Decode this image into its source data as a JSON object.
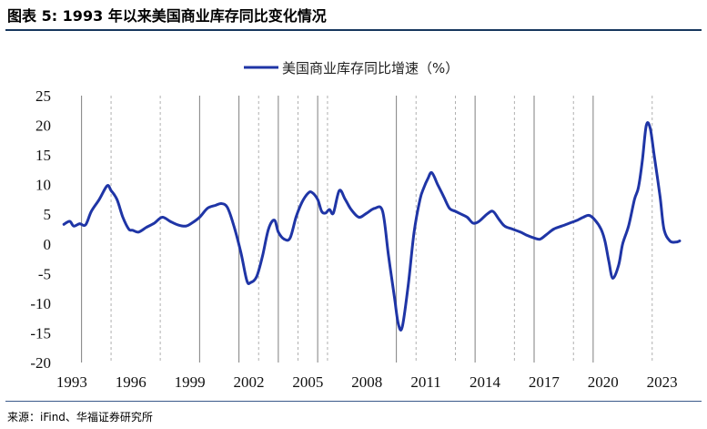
{
  "figure": {
    "title": "图表 5:  1993 年以来美国商业库存同比变化情况",
    "source": "来源：iFind、华福证券研究所"
  },
  "colors": {
    "series": "#1f35a6",
    "solid_grid": "#7f7f7f",
    "dashed_grid": "#b0b0b0"
  },
  "chart_data": {
    "type": "line",
    "title": "",
    "xlabel": "",
    "ylabel": "",
    "xlim": [
      1992.5,
      2024.5
    ],
    "ylim": [
      -20,
      25
    ],
    "y_ticks": [
      25,
      20,
      15,
      10,
      5,
      0,
      -5,
      -10,
      -15,
      -20
    ],
    "x_ticks": [
      "1993",
      "1996",
      "1999",
      "2002",
      "2005",
      "2008",
      "2011",
      "2014",
      "2017",
      "2020",
      "2023"
    ],
    "x_tick_values": [
      1993,
      1996,
      1999,
      2002,
      2005,
      2008,
      2011,
      2014,
      2017,
      2020,
      2023
    ],
    "grid": "vertical lines only",
    "vertical_solid_lines": [
      1993.5,
      1999.5,
      2001.5,
      2003.5,
      2005.5,
      2009.5,
      2013.5,
      2016.5,
      2019.5
    ],
    "vertical_dashed_lines": [
      1995.0,
      1997.5,
      2002.5,
      2004.5,
      2006.0,
      2010.5,
      2012.5,
      2015.5,
      2018.5,
      2022.5
    ],
    "legend_position": "top-center",
    "series": [
      {
        "name": "美国商业库存同比增速（%）",
        "x": [
          1992.6,
          1992.9,
          1993.1,
          1993.4,
          1993.7,
          1994.0,
          1994.4,
          1994.8,
          1995.0,
          1995.3,
          1995.6,
          1995.9,
          1996.1,
          1996.4,
          1996.8,
          1997.2,
          1997.6,
          1998.0,
          1998.4,
          1998.8,
          1999.1,
          1999.5,
          1999.9,
          2000.3,
          2000.6,
          2000.9,
          2001.2,
          2001.6,
          2001.9,
          2002.1,
          2002.4,
          2002.7,
          2003.0,
          2003.3,
          2003.5,
          2003.8,
          2004.1,
          2004.4,
          2004.7,
          2005.0,
          2005.2,
          2005.5,
          2005.7,
          2005.9,
          2006.1,
          2006.3,
          2006.6,
          2006.9,
          2007.2,
          2007.6,
          2008.0,
          2008.4,
          2008.8,
          2009.1,
          2009.4,
          2009.6,
          2009.8,
          2010.1,
          2010.4,
          2010.7,
          2010.9,
          2011.1,
          2011.3,
          2011.6,
          2011.9,
          2012.2,
          2012.5,
          2012.8,
          2013.1,
          2013.4,
          2013.7,
          2014.1,
          2014.4,
          2014.7,
          2015.0,
          2015.4,
          2015.8,
          2016.1,
          2016.5,
          2016.8,
          2017.1,
          2017.5,
          2017.9,
          2018.3,
          2018.7,
          2019.0,
          2019.3,
          2019.6,
          2019.9,
          2020.1,
          2020.3,
          2020.5,
          2020.8,
          2021.0,
          2021.3,
          2021.6,
          2021.8,
          2022.0,
          2022.2,
          2022.4,
          2022.6,
          2022.9,
          2023.1,
          2023.4,
          2023.7,
          2023.9
        ],
        "values": [
          3.3,
          3.8,
          3.0,
          3.4,
          3.2,
          5.5,
          7.5,
          9.8,
          9.0,
          7.5,
          4.5,
          2.5,
          2.3,
          2.0,
          2.8,
          3.5,
          4.5,
          3.8,
          3.2,
          3.0,
          3.5,
          4.5,
          6.0,
          6.5,
          6.8,
          6.2,
          3.5,
          -1.5,
          -6.2,
          -6.5,
          -5.5,
          -2.0,
          2.5,
          4.0,
          2.0,
          0.8,
          1.0,
          4.5,
          7.0,
          8.5,
          8.7,
          7.5,
          5.5,
          5.2,
          5.8,
          5.2,
          9.0,
          7.5,
          5.8,
          4.5,
          5.2,
          6.0,
          5.5,
          -2.0,
          -9.0,
          -13.5,
          -14.0,
          -7.0,
          2.0,
          7.5,
          9.5,
          11.0,
          12.0,
          10.0,
          8.0,
          6.0,
          5.5,
          5.0,
          4.5,
          3.5,
          3.8,
          5.0,
          5.5,
          4.2,
          3.0,
          2.5,
          2.0,
          1.5,
          1.0,
          0.8,
          1.5,
          2.5,
          3.0,
          3.5,
          4.0,
          4.5,
          4.8,
          4.0,
          2.5,
          0.5,
          -3.0,
          -5.8,
          -3.5,
          0.0,
          3.0,
          7.5,
          9.5,
          14.0,
          20.0,
          19.5,
          15.0,
          8.0,
          2.5,
          0.5,
          0.3,
          0.5
        ]
      }
    ]
  }
}
